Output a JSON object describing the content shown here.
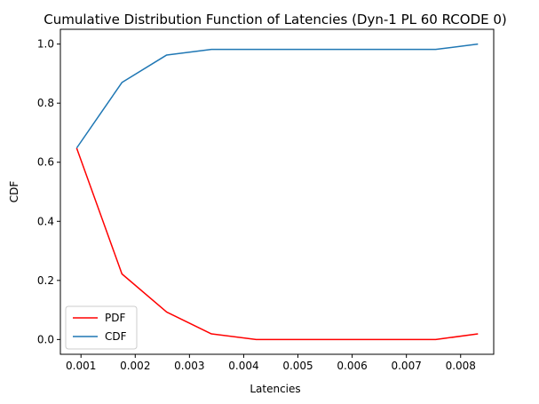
{
  "chart_data": {
    "type": "line",
    "title": "Cumulative Distribution Function of Latencies (Dyn-1 PL 60 RCODE 0)",
    "xlabel": "Latencies",
    "ylabel": "CDF",
    "xlim": [
      0.00062,
      0.00861
    ],
    "ylim": [
      -0.05,
      1.05
    ],
    "xticks": [
      0.001,
      0.002,
      0.003,
      0.004,
      0.005,
      0.006,
      0.007,
      0.008
    ],
    "xtick_labels": [
      "0.001",
      "0.002",
      "0.003",
      "0.004",
      "0.005",
      "0.006",
      "0.007",
      "0.008"
    ],
    "yticks": [
      0.0,
      0.2,
      0.4,
      0.6,
      0.8,
      1.0
    ],
    "ytick_labels": [
      "0.0",
      "0.2",
      "0.4",
      "0.6",
      "0.8",
      "1.0"
    ],
    "grid": false,
    "legend_position": "lower-left",
    "series": [
      {
        "name": "PDF",
        "color": "#ff0000",
        "x": [
          0.00092,
          0.001755,
          0.00258,
          0.003405,
          0.00423,
          0.00506,
          0.00589,
          0.00671,
          0.00754,
          0.00832
        ],
        "y": [
          0.648,
          0.222,
          0.093,
          0.019,
          0.0,
          0.0,
          0.0,
          0.0,
          0.0,
          0.019
        ]
      },
      {
        "name": "CDF",
        "color": "#1f77b4",
        "x": [
          0.00092,
          0.001755,
          0.00258,
          0.003405,
          0.00423,
          0.00506,
          0.00589,
          0.00671,
          0.00754,
          0.00832
        ],
        "y": [
          0.648,
          0.87,
          0.963,
          0.982,
          0.982,
          0.982,
          0.982,
          0.982,
          0.982,
          1.0
        ]
      }
    ]
  }
}
